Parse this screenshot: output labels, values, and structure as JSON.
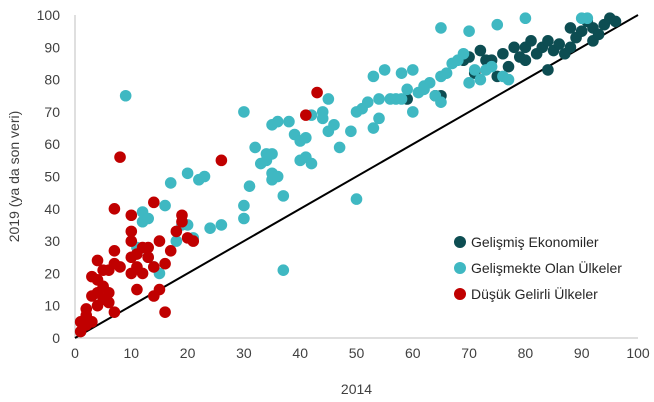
{
  "chart_data": {
    "type": "scatter",
    "title": "",
    "xlabel": "2014",
    "ylabel": "2019 (ya da son veri)",
    "xlim": [
      0,
      100
    ],
    "ylim": [
      0,
      100
    ],
    "xticks": [
      "0",
      "10",
      "20",
      "30",
      "40",
      "50",
      "60",
      "70",
      "80",
      "90",
      "100"
    ],
    "yticks": [
      "0",
      "10",
      "20",
      "30",
      "40",
      "50",
      "60",
      "70",
      "80",
      "90",
      "100"
    ],
    "grid": false,
    "legend_position": "bottom-right",
    "reference_line": {
      "from": [
        0,
        0
      ],
      "to": [
        100,
        100
      ],
      "color": "#000000"
    },
    "series": [
      {
        "name": "Gelişmiş Ekonomiler",
        "color": "#0d4d52",
        "points": [
          [
            59,
            74
          ],
          [
            64,
            75
          ],
          [
            65,
            75
          ],
          [
            69,
            86
          ],
          [
            70,
            87
          ],
          [
            71,
            82
          ],
          [
            72,
            89
          ],
          [
            73,
            86
          ],
          [
            74,
            86
          ],
          [
            75,
            81
          ],
          [
            76,
            88
          ],
          [
            77,
            84
          ],
          [
            78,
            90
          ],
          [
            79,
            87
          ],
          [
            80,
            86
          ],
          [
            80,
            90
          ],
          [
            81,
            92
          ],
          [
            82,
            88
          ],
          [
            83,
            90
          ],
          [
            84,
            92
          ],
          [
            84,
            83
          ],
          [
            85,
            89
          ],
          [
            86,
            91
          ],
          [
            87,
            88
          ],
          [
            88,
            90
          ],
          [
            89,
            93
          ],
          [
            90,
            95
          ],
          [
            91,
            98
          ],
          [
            92,
            96
          ],
          [
            92,
            92
          ],
          [
            93,
            94
          ],
          [
            94,
            97
          ],
          [
            95,
            99
          ],
          [
            96,
            98
          ],
          [
            88,
            96
          ]
        ]
      },
      {
        "name": "Gelişmekte Olan Ülkeler",
        "color": "#3fb8c2",
        "points": [
          [
            9,
            75
          ],
          [
            11,
            28
          ],
          [
            12,
            39
          ],
          [
            12,
            36
          ],
          [
            13,
            37
          ],
          [
            13,
            25
          ],
          [
            14,
            22
          ],
          [
            15,
            20
          ],
          [
            16,
            41
          ],
          [
            17,
            48
          ],
          [
            18,
            30
          ],
          [
            19,
            35
          ],
          [
            20,
            51
          ],
          [
            20,
            35
          ],
          [
            21,
            31
          ],
          [
            22,
            49
          ],
          [
            23,
            50
          ],
          [
            24,
            34
          ],
          [
            26,
            35
          ],
          [
            30,
            70
          ],
          [
            30,
            41
          ],
          [
            30,
            37
          ],
          [
            31,
            47
          ],
          [
            32,
            59
          ],
          [
            33,
            54
          ],
          [
            34,
            55
          ],
          [
            34,
            57
          ],
          [
            35,
            66
          ],
          [
            35,
            57
          ],
          [
            36,
            67
          ],
          [
            37,
            44
          ],
          [
            35,
            51
          ],
          [
            35,
            49
          ],
          [
            36,
            50
          ],
          [
            37,
            21
          ],
          [
            38,
            67
          ],
          [
            39,
            63
          ],
          [
            40,
            55
          ],
          [
            40,
            61
          ],
          [
            41,
            62
          ],
          [
            41,
            56
          ],
          [
            42,
            54
          ],
          [
            42,
            69
          ],
          [
            44,
            70
          ],
          [
            44,
            68
          ],
          [
            45,
            64
          ],
          [
            45,
            74
          ],
          [
            46,
            66
          ],
          [
            47,
            59
          ],
          [
            49,
            64
          ],
          [
            50,
            70
          ],
          [
            50,
            43
          ],
          [
            51,
            71
          ],
          [
            52,
            73
          ],
          [
            53,
            65
          ],
          [
            53,
            81
          ],
          [
            54,
            68
          ],
          [
            54,
            74
          ],
          [
            55,
            83
          ],
          [
            56,
            74
          ],
          [
            57,
            74
          ],
          [
            58,
            82
          ],
          [
            58,
            74
          ],
          [
            59,
            77
          ],
          [
            60,
            70
          ],
          [
            60,
            83
          ],
          [
            61,
            76
          ],
          [
            62,
            78
          ],
          [
            63,
            79
          ],
          [
            64,
            75
          ],
          [
            65,
            73
          ],
          [
            65,
            81
          ],
          [
            65,
            96
          ],
          [
            66,
            82
          ],
          [
            67,
            85
          ],
          [
            68,
            86
          ],
          [
            69,
            88
          ],
          [
            70,
            79
          ],
          [
            71,
            83
          ],
          [
            72,
            80
          ],
          [
            73,
            83
          ],
          [
            74,
            84
          ],
          [
            75,
            97
          ],
          [
            76,
            81
          ],
          [
            77,
            80
          ],
          [
            70,
            95
          ],
          [
            80,
            99
          ],
          [
            91,
            99
          ],
          [
            90,
            99
          ],
          [
            62,
            77
          ]
        ]
      },
      {
        "name": "Düşük Gelirli Ülkeler",
        "color": "#c00000",
        "points": [
          [
            1,
            2
          ],
          [
            1,
            5
          ],
          [
            2,
            4
          ],
          [
            2,
            7
          ],
          [
            2,
            9
          ],
          [
            3,
            5
          ],
          [
            3,
            13
          ],
          [
            3,
            19
          ],
          [
            4,
            10
          ],
          [
            4,
            14
          ],
          [
            4,
            18
          ],
          [
            4,
            24
          ],
          [
            5,
            12
          ],
          [
            5,
            16
          ],
          [
            5,
            21
          ],
          [
            6,
            11
          ],
          [
            6,
            14
          ],
          [
            6,
            21
          ],
          [
            7,
            8
          ],
          [
            7,
            23
          ],
          [
            7,
            27
          ],
          [
            7,
            40
          ],
          [
            8,
            22
          ],
          [
            8,
            56
          ],
          [
            10,
            20
          ],
          [
            10,
            25
          ],
          [
            10,
            30
          ],
          [
            10,
            33
          ],
          [
            10,
            38
          ],
          [
            11,
            15
          ],
          [
            11,
            22
          ],
          [
            11,
            26
          ],
          [
            12,
            28
          ],
          [
            12,
            20
          ],
          [
            13,
            25
          ],
          [
            13,
            28
          ],
          [
            14,
            42
          ],
          [
            14,
            13
          ],
          [
            14,
            22
          ],
          [
            15,
            15
          ],
          [
            15,
            30
          ],
          [
            16,
            8
          ],
          [
            16,
            23
          ],
          [
            17,
            27
          ],
          [
            18,
            33
          ],
          [
            19,
            36
          ],
          [
            19,
            38
          ],
          [
            20,
            31
          ],
          [
            21,
            30
          ],
          [
            26,
            55
          ],
          [
            41,
            69
          ],
          [
            43,
            76
          ]
        ]
      }
    ]
  }
}
